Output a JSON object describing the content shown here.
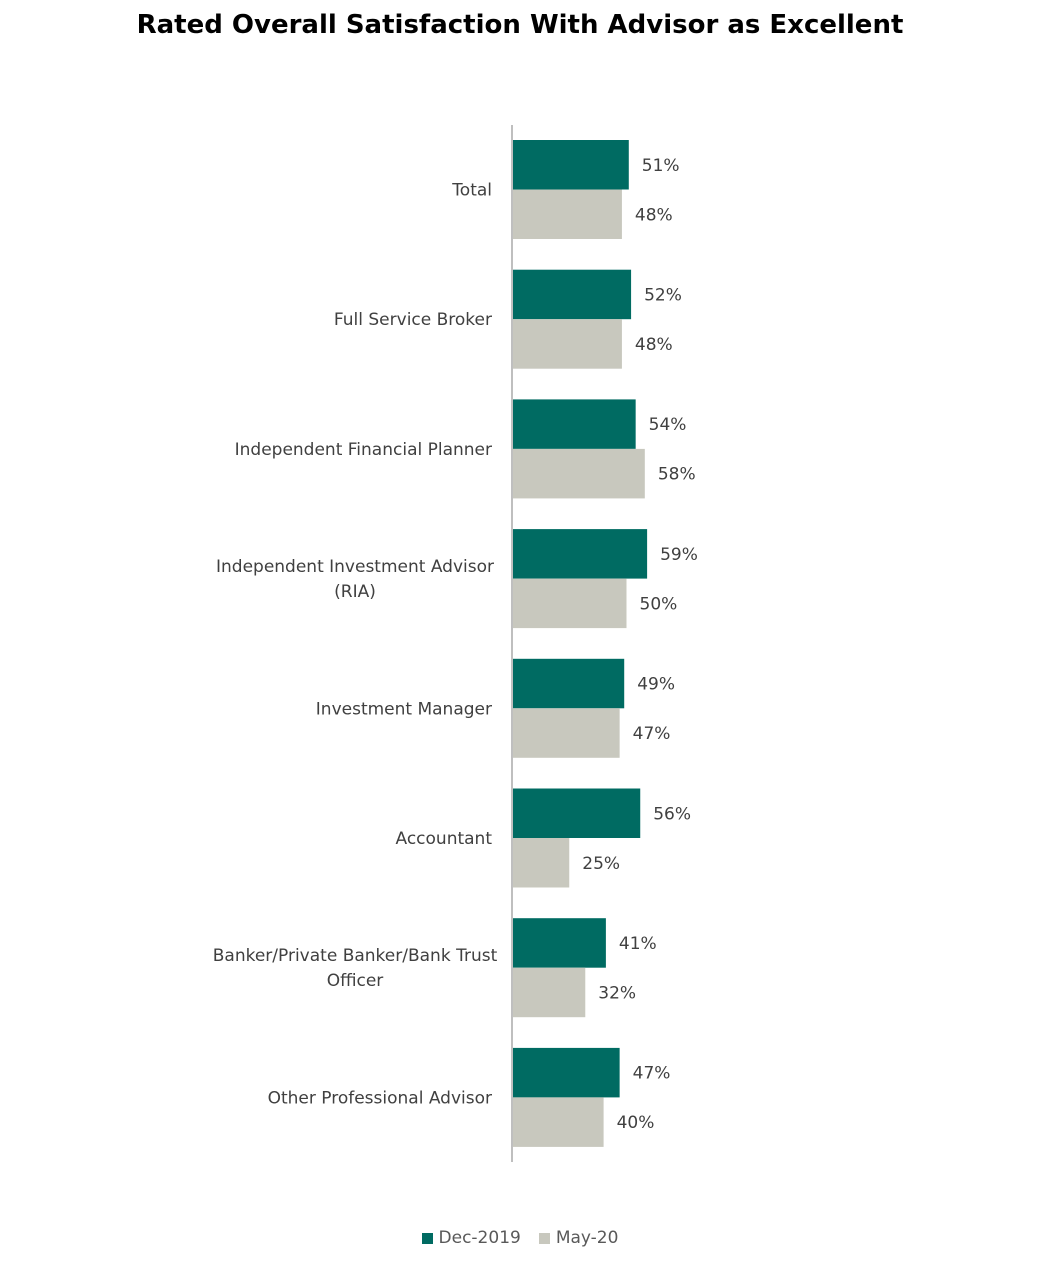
{
  "chart_data": {
    "type": "bar",
    "orientation": "horizontal",
    "title": "Rated Overall Satisfaction With Advisor as Excellent",
    "categories": [
      [
        "Total"
      ],
      [
        "Full Service Broker"
      ],
      [
        "Independent Financial Planner"
      ],
      [
        "Independent Investment Advisor",
        "(RIA)"
      ],
      [
        "Investment Manager"
      ],
      [
        "Accountant"
      ],
      [
        "Banker/Private Banker/Bank Trust",
        "Officer"
      ],
      [
        "Other Professional Advisor"
      ]
    ],
    "series": [
      {
        "name": "Dec-2019",
        "color": "#006b62",
        "values": [
          51,
          52,
          54,
          59,
          49,
          56,
          41,
          47
        ],
        "labels": [
          "51%",
          "52%",
          "54%",
          "59%",
          "49%",
          "56%",
          "41%",
          "47%"
        ]
      },
      {
        "name": "May-20",
        "color": "#c8c8be",
        "values": [
          48,
          48,
          58,
          50,
          47,
          25,
          32,
          40
        ],
        "labels": [
          "48%",
          "48%",
          "58%",
          "50%",
          "47%",
          "25%",
          "32%",
          "40%"
        ]
      }
    ],
    "xlim": [
      0,
      100
    ],
    "legend_position": "bottom",
    "grid": false,
    "axis_color": "#bfbfbf"
  }
}
